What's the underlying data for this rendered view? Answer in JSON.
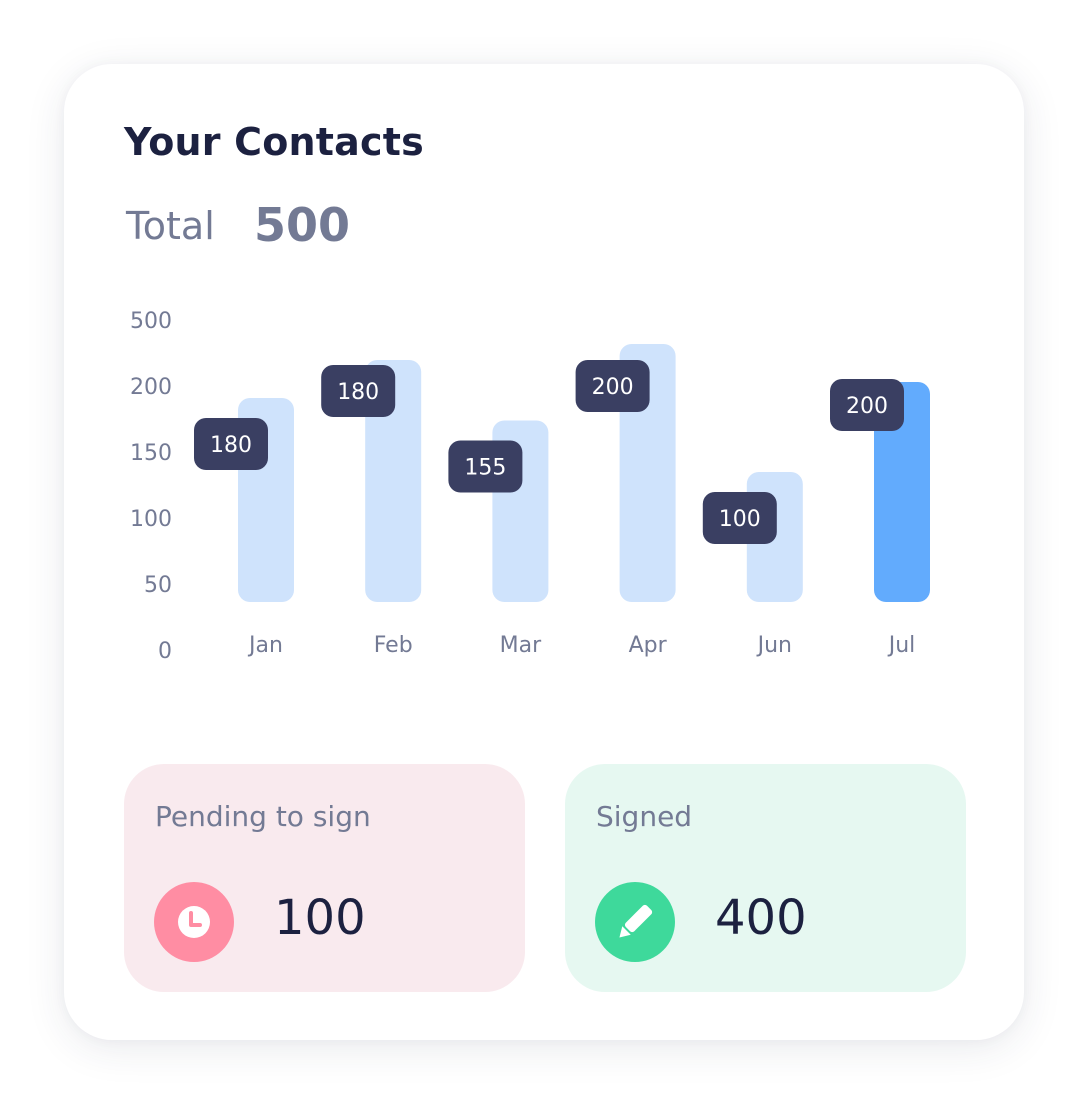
{
  "card": {
    "title": "Your Contacts",
    "total_label": "Total",
    "total_value": "500"
  },
  "chart_data": {
    "type": "bar",
    "categories": [
      "Jan",
      "Feb",
      "Mar",
      "Apr",
      "Jun",
      "Jul"
    ],
    "values": [
      180,
      180,
      155,
      200,
      100,
      200
    ],
    "data_labels": [
      "180",
      "180",
      "155",
      "200",
      "100",
      "200"
    ],
    "y_ticks": [
      "500",
      "200",
      "150",
      "100",
      "50",
      "0"
    ],
    "highlighted_category": "Jul",
    "colors": {
      "bar": "#cfe3fc",
      "bar_highlight": "#62abfd",
      "label_bg": "#3a3f62",
      "label_text": "#ffffff",
      "axis_text": "#737a94"
    }
  },
  "stats": {
    "pending": {
      "label": "Pending to sign",
      "value": "100",
      "icon": "clock-icon",
      "color": "#ff8da3"
    },
    "signed": {
      "label": "Signed",
      "value": "400",
      "icon": "pen-icon",
      "color": "#3ed99b"
    }
  }
}
